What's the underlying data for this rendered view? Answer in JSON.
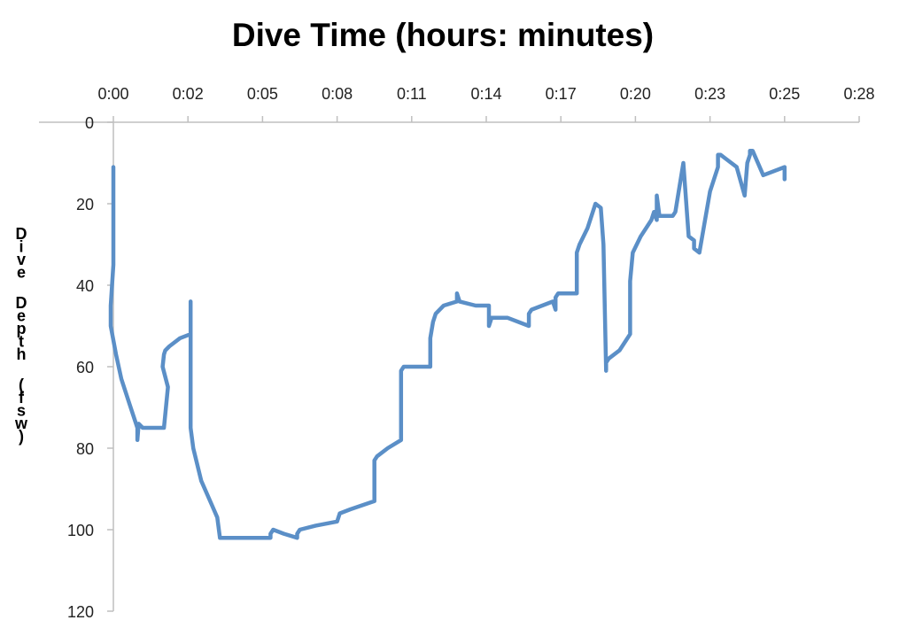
{
  "chart_data": {
    "type": "line",
    "title": "Dive Time (hours: minutes)",
    "ylabel": "Dive Depth (fsw)",
    "x_unit": "minutes",
    "x_tick_labels": [
      "0:00",
      "0:02",
      "0:05",
      "0:08",
      "0:11",
      "0:14",
      "0:17",
      "0:20",
      "0:23",
      "0:25",
      "0:28"
    ],
    "x_tick_values": [
      0,
      2.8,
      5.6,
      8.4,
      11.2,
      14.0,
      16.8,
      19.6,
      22.4,
      25.2,
      28.0
    ],
    "xlim": [
      0,
      28
    ],
    "y_tick_labels": [
      "0",
      "20",
      "40",
      "60",
      "80",
      "100",
      "120"
    ],
    "y_tick_values": [
      0,
      20,
      40,
      60,
      80,
      100,
      120
    ],
    "ylim": [
      0,
      120
    ],
    "y_inverted": true,
    "x_axis_position": "top",
    "grid": false,
    "series_color": "#5b8fc7",
    "series": [
      {
        "x": [
          0.0,
          0.0,
          -0.1,
          -0.1,
          0.1,
          0.3,
          0.6,
          0.9,
          0.9,
          0.95,
          1.1,
          1.4,
          1.9,
          2.05,
          1.85,
          1.9,
          1.95,
          2.1,
          2.5,
          2.9,
          2.9,
          2.9,
          2.9,
          3.0,
          3.3,
          3.7,
          3.9,
          4.0,
          4.5,
          5.0,
          5.5,
          5.9,
          5.9,
          6.0,
          6.4,
          6.9,
          6.9,
          7.0,
          7.6,
          8.4,
          8.5,
          8.9,
          9.8,
          9.8,
          9.9,
          10.3,
          10.8,
          10.8,
          10.9,
          11.2,
          11.9,
          11.9,
          12.0,
          12.1,
          12.4,
          12.9,
          12.9,
          13.0,
          13.6,
          14.1,
          14.1,
          14.2,
          14.8,
          15.6,
          15.6,
          15.7,
          16.5,
          16.6,
          16.6,
          16.7,
          17.4,
          17.4,
          17.5,
          17.8,
          18.0,
          18.1,
          18.3,
          18.4,
          18.5,
          18.5,
          18.6,
          19.0,
          19.4,
          19.4,
          19.4,
          19.5,
          19.8,
          20.1,
          20.2,
          20.3,
          20.4,
          20.4,
          20.5,
          21.0,
          21.1,
          21.4,
          21.6,
          21.8,
          21.8,
          21.8,
          22.0,
          22.4,
          22.7,
          22.7,
          22.8,
          23.0,
          23.4,
          23.7,
          23.8,
          23.9,
          23.9,
          24.0,
          24.4,
          24.4,
          25.2,
          25.2
        ],
        "y": [
          11,
          35,
          45,
          50,
          57,
          63,
          69,
          75,
          78,
          74,
          75,
          75,
          75,
          65,
          60,
          57,
          56,
          55,
          53,
          52,
          44,
          60,
          75,
          80,
          88,
          94,
          97,
          102,
          102,
          102,
          102,
          102,
          101,
          100,
          101,
          102,
          101,
          100,
          99,
          98,
          96,
          95,
          93,
          83,
          82,
          80,
          78,
          61,
          60,
          60,
          60,
          53,
          49,
          47,
          45,
          44,
          42,
          44,
          45,
          45,
          50,
          48,
          48,
          50,
          47,
          46,
          44,
          46,
          43,
          42,
          42,
          32,
          30,
          26,
          22,
          20,
          21,
          30,
          61,
          59,
          58,
          56,
          52,
          42,
          39,
          32,
          28,
          25,
          24,
          22,
          24,
          18,
          23,
          23,
          22,
          10,
          28,
          29,
          30,
          31,
          32,
          17,
          11,
          8,
          8,
          9,
          11,
          18,
          10,
          8,
          7,
          7,
          13,
          13,
          11,
          14
        ]
      }
    ]
  }
}
